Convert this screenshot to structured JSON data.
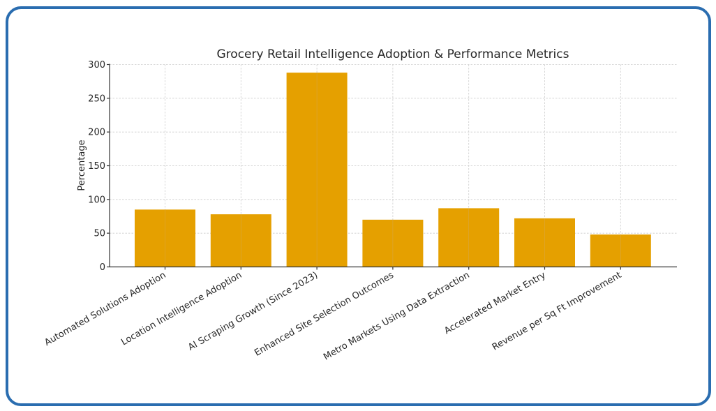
{
  "chart_data": {
    "type": "bar",
    "title": "Grocery Retail Intelligence Adoption & Performance Metrics",
    "xlabel": "",
    "ylabel": "Percentage",
    "ylim": [
      0,
      300
    ],
    "yticks": [
      0,
      50,
      100,
      150,
      200,
      250,
      300
    ],
    "grid": true,
    "legend": null,
    "bar_color": "#e5a000",
    "categories": [
      "Automated Solutions Adoption",
      "Location Intelligence Adoption",
      "AI Scraping Growth (Since 2023)",
      "Enhanced Site Selection Outcomes",
      "Metro Markets Using Data Extraction",
      "Accelerated Market Entry",
      "Revenue per Sq Ft Improvement"
    ],
    "values": [
      85,
      78,
      288,
      70,
      87,
      72,
      48
    ]
  },
  "frame": {
    "border_color": "#2a6db0"
  }
}
